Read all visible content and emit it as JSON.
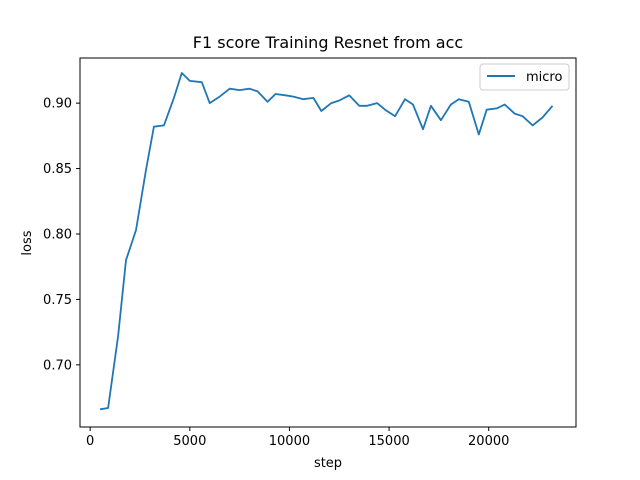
{
  "chart_data": {
    "type": "line",
    "title": "F1 score Training Resnet from acc",
    "xlabel": "step",
    "ylabel": "loss",
    "xlim": [
      -510,
      24380
    ],
    "ylim": [
      0.6525,
      0.9345
    ],
    "xticks": [
      0,
      5000,
      10000,
      15000,
      20000
    ],
    "xtick_labels": [
      "0",
      "5000",
      "10000",
      "15000",
      "20000"
    ],
    "yticks": [
      0.7,
      0.75,
      0.8,
      0.85,
      0.9
    ],
    "ytick_labels": [
      "0.70",
      "0.75",
      "0.80",
      "0.85",
      "0.90"
    ],
    "grid": false,
    "legend_position": "top-right",
    "series": [
      {
        "name": "micro",
        "color": "#1f77b4",
        "x": [
          500,
          900,
          1400,
          1800,
          2300,
          2800,
          3200,
          3700,
          4200,
          4600,
          5000,
          5600,
          6000,
          6500,
          7000,
          7500,
          8000,
          8400,
          8900,
          9300,
          9800,
          10200,
          10700,
          11200,
          11600,
          12100,
          12500,
          13000,
          13500,
          13900,
          14400,
          14800,
          15300,
          15800,
          16200,
          16700,
          17100,
          17600,
          18100,
          18500,
          19000,
          19500,
          19900,
          20400,
          20800,
          21300,
          21700,
          22200,
          22700,
          23200
        ],
        "values": [
          0.666,
          0.667,
          0.722,
          0.78,
          0.803,
          0.849,
          0.882,
          0.883,
          0.904,
          0.923,
          0.917,
          0.916,
          0.9,
          0.905,
          0.911,
          0.91,
          0.911,
          0.909,
          0.901,
          0.907,
          0.906,
          0.905,
          0.903,
          0.904,
          0.894,
          0.9,
          0.902,
          0.906,
          0.898,
          0.898,
          0.9,
          0.895,
          0.89,
          0.903,
          0.899,
          0.88,
          0.898,
          0.887,
          0.899,
          0.903,
          0.901,
          0.876,
          0.895,
          0.896,
          0.899,
          0.892,
          0.89,
          0.883,
          0.889,
          0.898
        ]
      }
    ]
  }
}
